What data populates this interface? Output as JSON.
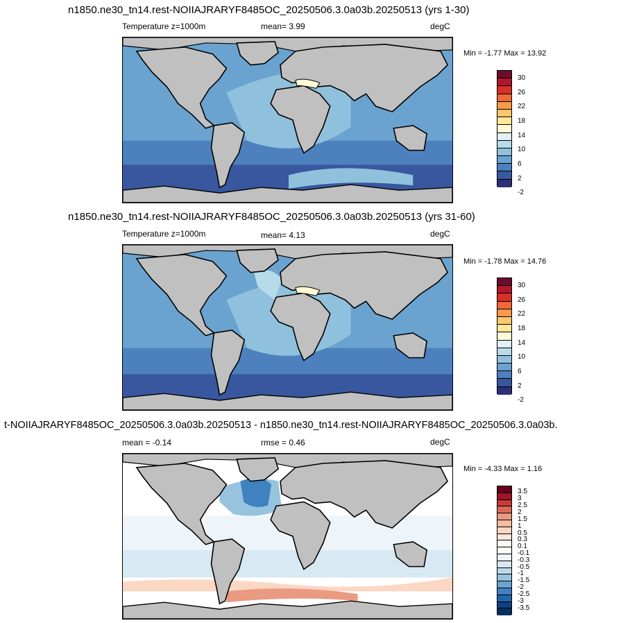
{
  "panels": [
    {
      "title": "n1850.ne30_tn14.rest-NOIIAJRARYF8485OC_20250506.3.0a03b.20250513 (yrs 1-30)",
      "left_label": "Temperature z=1000m",
      "center_label": "mean=   3.99",
      "units": "degC",
      "minmax": "Min =  -1.77 Max =  13.92",
      "colorbar_labels": [
        "30",
        "26",
        "22",
        "18",
        "14",
        "10",
        "6",
        "2",
        "-2"
      ]
    },
    {
      "title": "n1850.ne30_tn14.rest-NOIIAJRARYF8485OC_20250506.3.0a03b.20250513 (yrs 31-60)",
      "left_label": "Temperature z=1000m",
      "center_label": "mean=   4.13",
      "units": "degC",
      "minmax": "Min =  -1.78 Max =  14.76",
      "colorbar_labels": [
        "30",
        "26",
        "22",
        "18",
        "14",
        "10",
        "6",
        "2",
        "-2"
      ]
    },
    {
      "title": "t-NOIIAJRARYF8485OC_20250506.3.0a03b.20250513 - n1850.ne30_tn14.rest-NOIIAJRARYF8485OC_20250506.3.0a03b.",
      "left_label": "mean =  -0.14",
      "center_label": "rmse =   0.46",
      "units": "degC",
      "minmax": "Min =  -4.33 Max =   1.16",
      "colorbar_labels": [
        "3.5",
        "3",
        "2.5",
        "2",
        "1.5",
        "1",
        "0.5",
        "0.3",
        "0.1",
        "-0.1",
        "-0.3",
        "-0.5",
        "-1",
        "-1.5",
        "-2",
        "-2.5",
        "-3",
        "-3.5"
      ]
    }
  ],
  "colors": {
    "land": "#c0c0c0",
    "temperature_scale": [
      "#6a0d2b",
      "#b2182b",
      "#d73027",
      "#ee6a3a",
      "#f89a4a",
      "#fdc770",
      "#fee99a",
      "#fffbd6",
      "#e1f1f6",
      "#b7dbea",
      "#8fc1dd",
      "#6aa3cf",
      "#4d81be",
      "#38579f",
      "#2d2f75"
    ],
    "diff_scale": [
      "#67001f",
      "#a01428",
      "#c43c3c",
      "#d86a5a",
      "#ea9a80",
      "#f5bca4",
      "#fbd7c4",
      "#fde8dc",
      "#fff7f2",
      "#ffffff",
      "#eef5fa",
      "#d9e9f3",
      "#bcd9ea",
      "#97c3df",
      "#6aa5d0",
      "#3f82bf",
      "#2166ac",
      "#123f7f",
      "#053061"
    ]
  }
}
